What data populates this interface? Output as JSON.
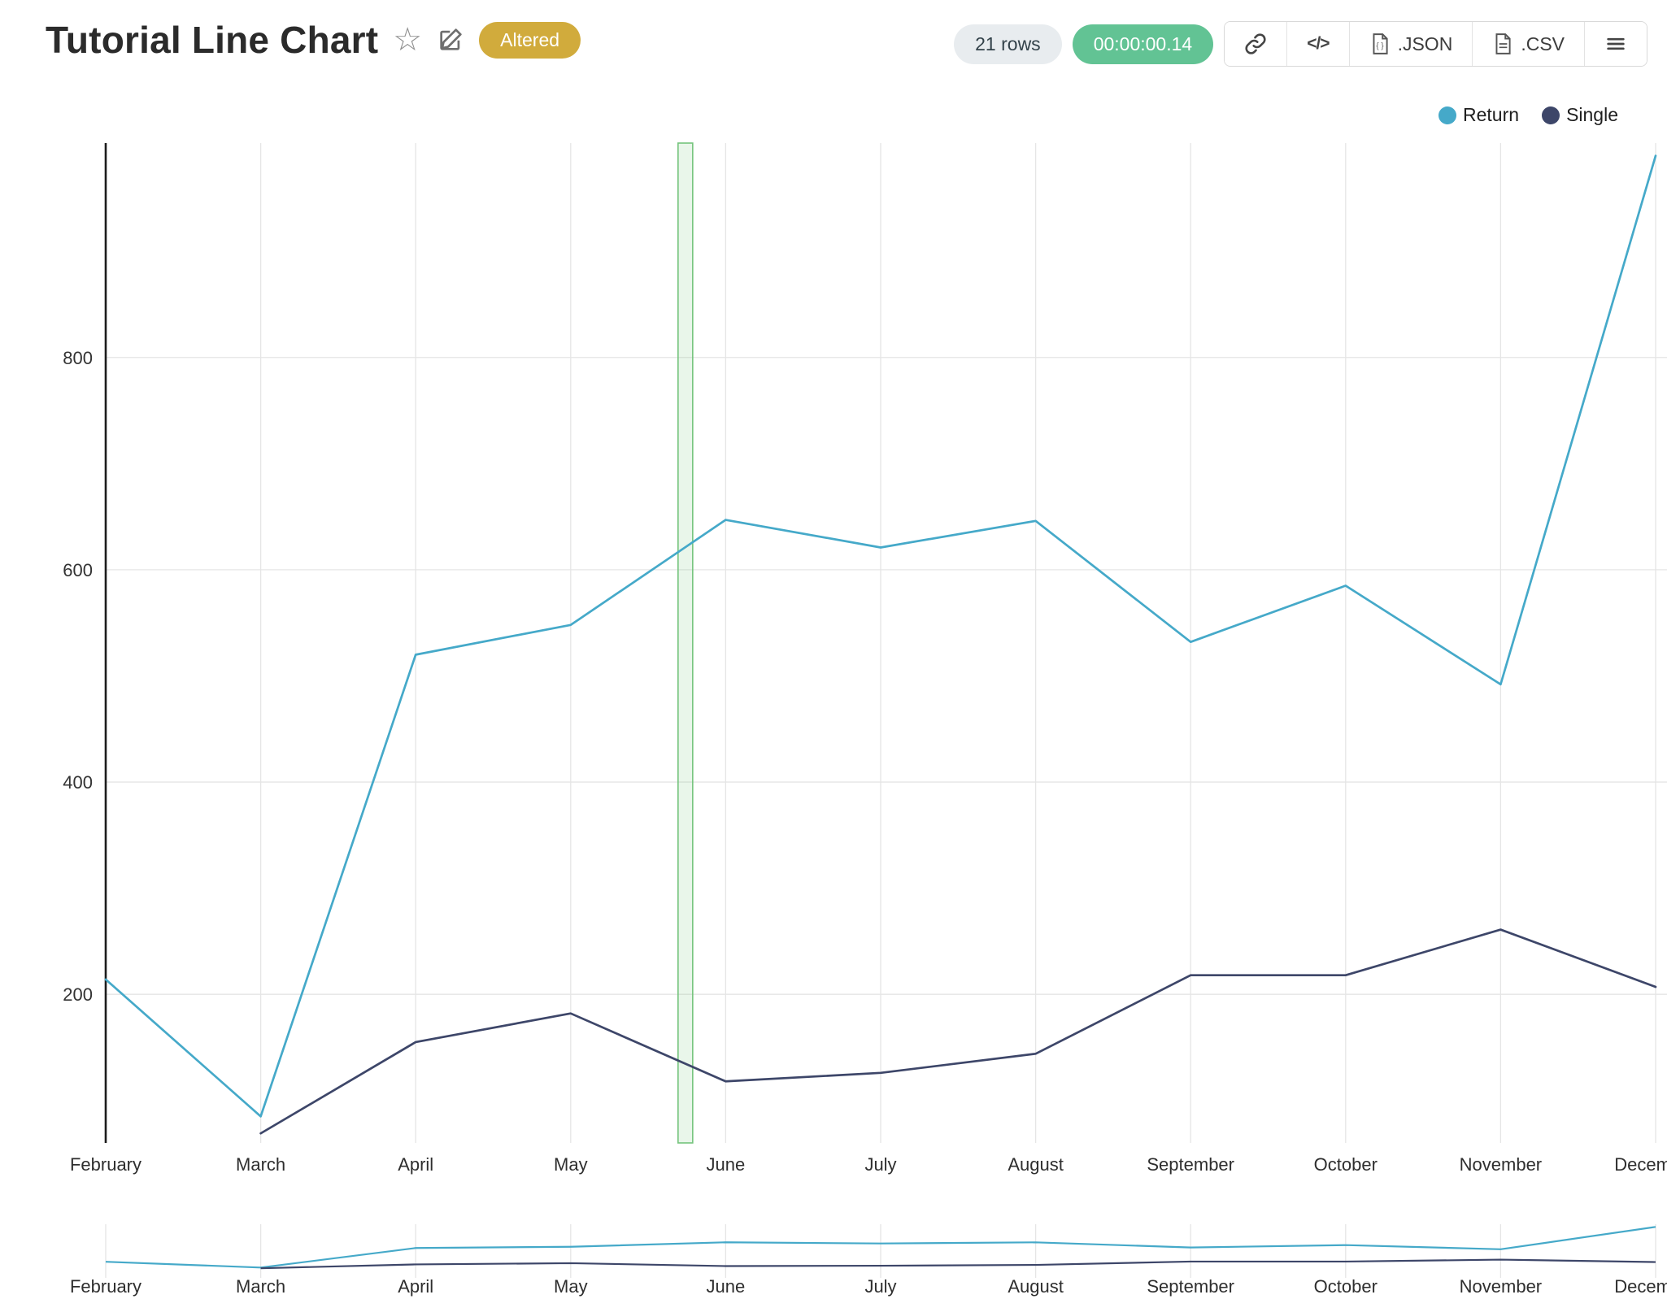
{
  "header": {
    "title": "Tutorial Line Chart",
    "altered_badge": "Altered",
    "rows_label": "21 rows",
    "timer_label": "00:00:00.14",
    "code_icon_label": "</>",
    "export_json_label": ".JSON",
    "export_csv_label": ".CSV"
  },
  "colors": {
    "gold": "#d1ab3c",
    "green": "#62c394",
    "return_series": "#45a9c9",
    "single_series": "#3d4669",
    "band": "#74c47c"
  },
  "legend": [
    {
      "label": "Return",
      "color": "#45a9c9"
    },
    {
      "label": "Single",
      "color": "#3d4669"
    }
  ],
  "chart_data": {
    "type": "line",
    "title": "Tutorial Line Chart",
    "categories": [
      "February",
      "March",
      "April",
      "May",
      "June",
      "July",
      "August",
      "September",
      "October",
      "November",
      "December"
    ],
    "series": [
      {
        "name": "Return",
        "color": "#45a9c9",
        "values": [
          214,
          85,
          520,
          548,
          647,
          621,
          646,
          532,
          585,
          492,
          990
        ]
      },
      {
        "name": "Single",
        "color": "#3d4669",
        "values": [
          null,
          69,
          155,
          182,
          118,
          126,
          144,
          218,
          218,
          261,
          207
        ]
      }
    ],
    "y_ticks": [
      200,
      400,
      600,
      800
    ],
    "ylim": [
      60,
      1002
    ],
    "xlabel": "",
    "ylabel": "",
    "grid": true,
    "legend_position": "top-right",
    "annotation_band": {
      "between": [
        "May",
        "June"
      ],
      "fraction": 0.74,
      "color": "#74c47c"
    },
    "navigator": {
      "present": true,
      "ylim": [
        0,
        1050
      ]
    }
  }
}
